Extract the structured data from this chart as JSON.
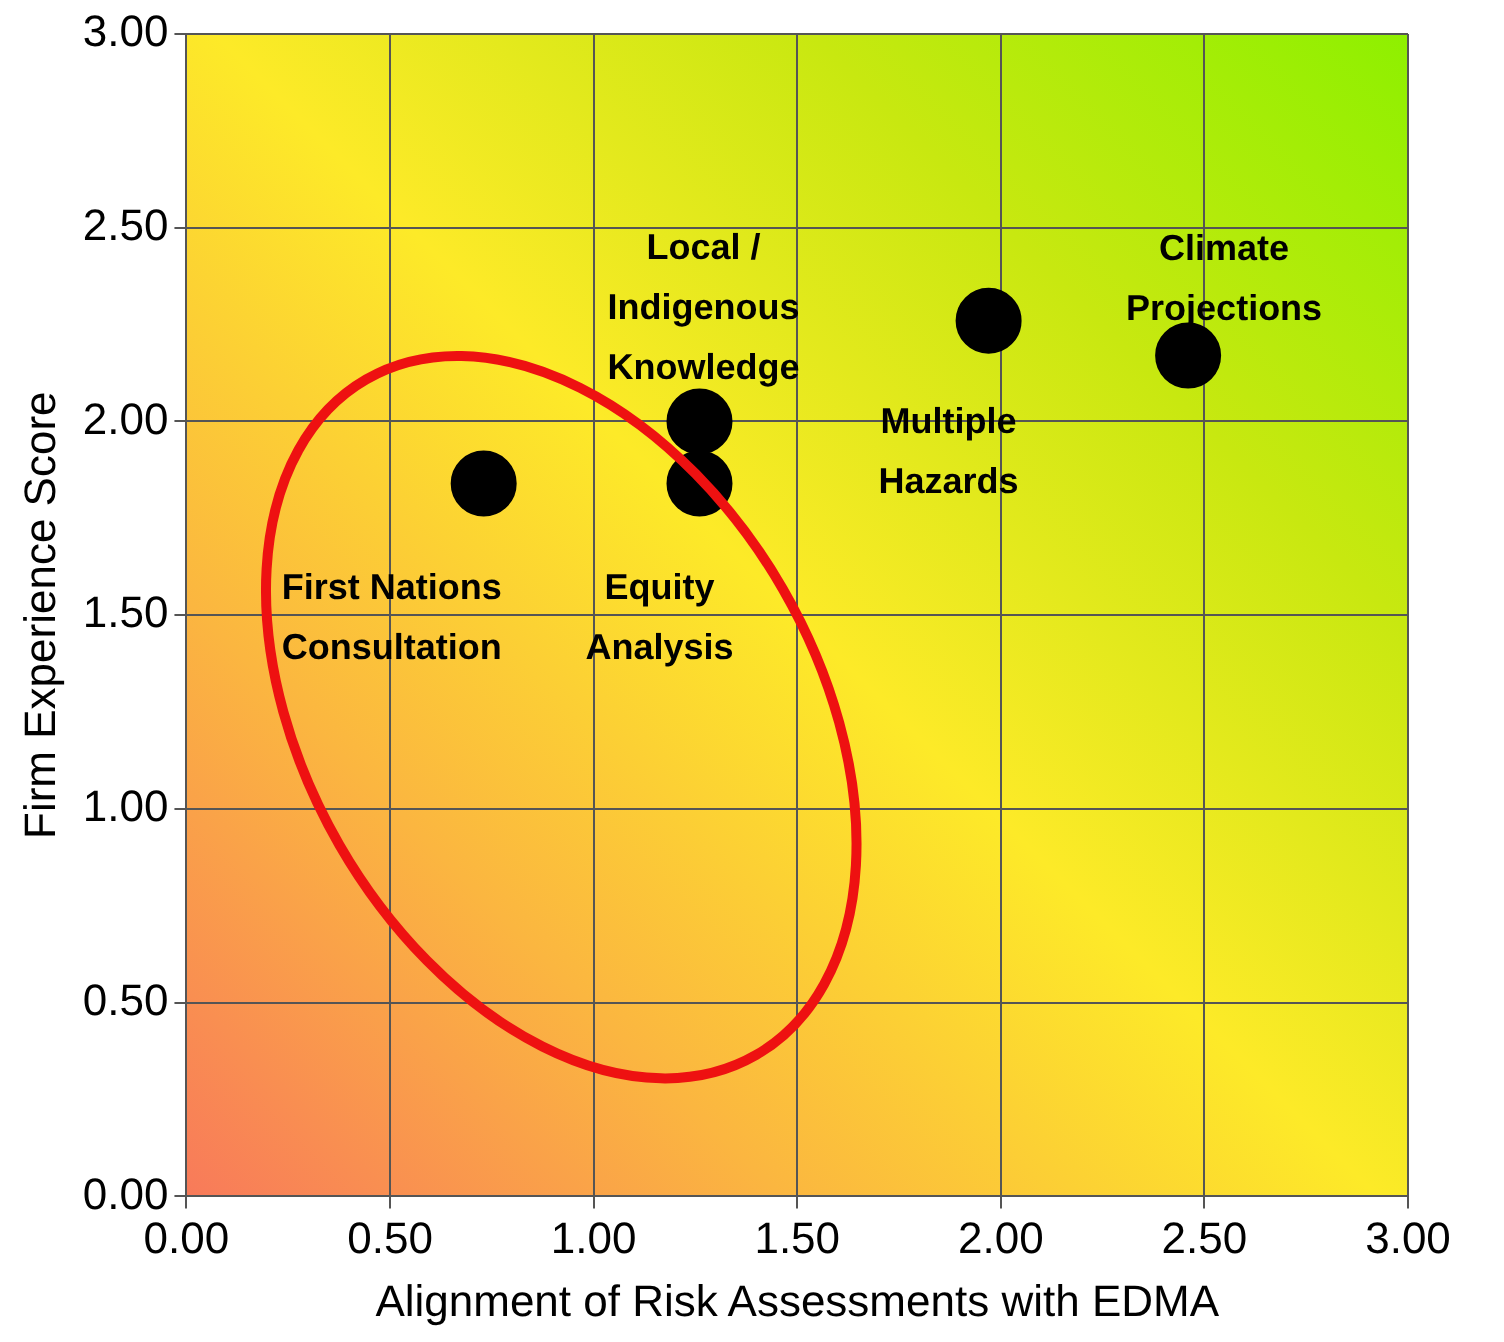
{
  "chart_data": {
    "type": "scatter",
    "xlabel": "Alignment of Risk Assessments with EDMA",
    "ylabel": "Firm Experience Score",
    "x": [
      0.73,
      1.26,
      1.26,
      1.97,
      2.46
    ],
    "values": [
      1.84,
      2.0,
      1.84,
      2.26,
      2.17
    ],
    "color": "#000000",
    "marker": "circle",
    "grid": true,
    "xlim": [
      0,
      3
    ],
    "xticks": [
      {
        "value": 0,
        "label": "0.00"
      },
      {
        "value": 0.5,
        "label": "0.50"
      },
      {
        "value": 1,
        "label": "1.00"
      },
      {
        "value": 1.5,
        "label": "1.50"
      },
      {
        "value": 2,
        "label": "2.00"
      },
      {
        "value": 2.5,
        "label": "2.50"
      },
      {
        "value": 3,
        "label": "3.00"
      }
    ],
    "ylim": [
      0,
      3
    ],
    "yticks": [
      {
        "value": 0,
        "label": "0.00"
      },
      {
        "value": 0.5,
        "label": "0.50"
      },
      {
        "value": 1,
        "label": "1.00"
      },
      {
        "value": 1.5,
        "label": "1.50"
      },
      {
        "value": 2,
        "label": "2.00"
      },
      {
        "value": 2.5,
        "label": "2.50"
      },
      {
        "value": 3,
        "label": "3.00"
      }
    ],
    "annotations": [
      {
        "text": "First Nations\nConsultation",
        "x": 0.73,
        "y": 1.84
      },
      {
        "text": "Local /\nIndigenous\nKnowledge",
        "x": 1.26,
        "y": 2.0
      },
      {
        "text": "Equity\nAnalysis",
        "x": 1.26,
        "y": 1.84
      },
      {
        "text": "Multiple\nHazards",
        "x": 1.97,
        "y": 2.26
      },
      {
        "text": "Climate\nProjections",
        "x": 2.46,
        "y": 2.17
      }
    ]
  }
}
